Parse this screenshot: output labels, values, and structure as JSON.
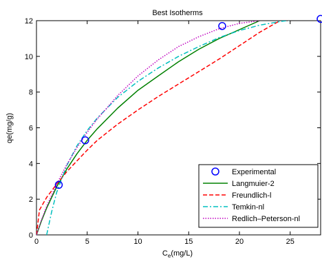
{
  "chart_data": {
    "type": "line",
    "title": "Best Isotherms",
    "xlabel_main": "C",
    "xlabel_sub": "e",
    "xlabel_rest": "(mg/L)",
    "ylabel": "qe(mg/g)",
    "xlim": [
      0,
      28
    ],
    "ylim": [
      0,
      12
    ],
    "xticks": [
      0,
      5,
      10,
      15,
      20,
      25
    ],
    "yticks": [
      0,
      2,
      4,
      6,
      8,
      10,
      12
    ],
    "grid": false,
    "legend_position": "bottom-right",
    "series": [
      {
        "name": "Experimental",
        "style": "marker-circle",
        "color": "#0000ff",
        "x": [
          2.2,
          4.8,
          18.3,
          28.0
        ],
        "y": [
          2.8,
          5.3,
          11.7,
          12.1
        ]
      },
      {
        "name": "Langmuier-2",
        "style": "solid",
        "color": "#008000",
        "x": [
          0,
          0.5,
          1,
          2,
          3,
          4,
          5,
          6,
          8,
          10,
          12,
          14,
          16,
          18,
          20,
          22
        ],
        "y": [
          0,
          0.8,
          1.5,
          2.7,
          3.7,
          4.55,
          5.3,
          5.95,
          7.1,
          8.1,
          8.9,
          9.7,
          10.4,
          11.0,
          11.5,
          12.0
        ]
      },
      {
        "name": "Freundlich-l",
        "style": "dashed",
        "color": "#ff0000",
        "x": [
          0,
          0.3,
          1,
          2,
          3,
          4,
          5,
          6,
          8,
          10,
          12,
          14,
          16,
          18,
          20,
          22,
          24
        ],
        "y": [
          0,
          1.4,
          2.1,
          2.85,
          3.55,
          4.15,
          4.75,
          5.3,
          6.2,
          7.0,
          7.75,
          8.45,
          9.15,
          9.85,
          10.6,
          11.35,
          12.0
        ]
      },
      {
        "name": "Temkin-nl",
        "style": "dashdot",
        "color": "#00bfbf",
        "x": [
          1.0,
          1.5,
          2,
          3,
          4,
          5,
          6,
          8,
          10,
          12,
          14,
          16,
          18,
          20,
          22,
          24,
          26
        ],
        "y": [
          0,
          1.3,
          2.4,
          3.9,
          5.0,
          5.85,
          6.55,
          7.7,
          8.6,
          9.35,
          10.0,
          10.55,
          11.05,
          11.45,
          11.75,
          11.95,
          12.1
        ]
      },
      {
        "name": "Redlich–Peterson-nl",
        "style": "dotted",
        "color": "#bf00bf",
        "x": [
          0,
          0.5,
          1,
          2,
          3,
          4,
          5,
          6,
          8,
          10,
          12,
          14,
          16,
          18,
          20,
          22
        ],
        "y": [
          0,
          0.85,
          1.6,
          2.85,
          3.95,
          4.9,
          5.75,
          6.5,
          7.8,
          8.9,
          9.8,
          10.55,
          11.1,
          11.55,
          11.85,
          12.0
        ]
      }
    ]
  }
}
